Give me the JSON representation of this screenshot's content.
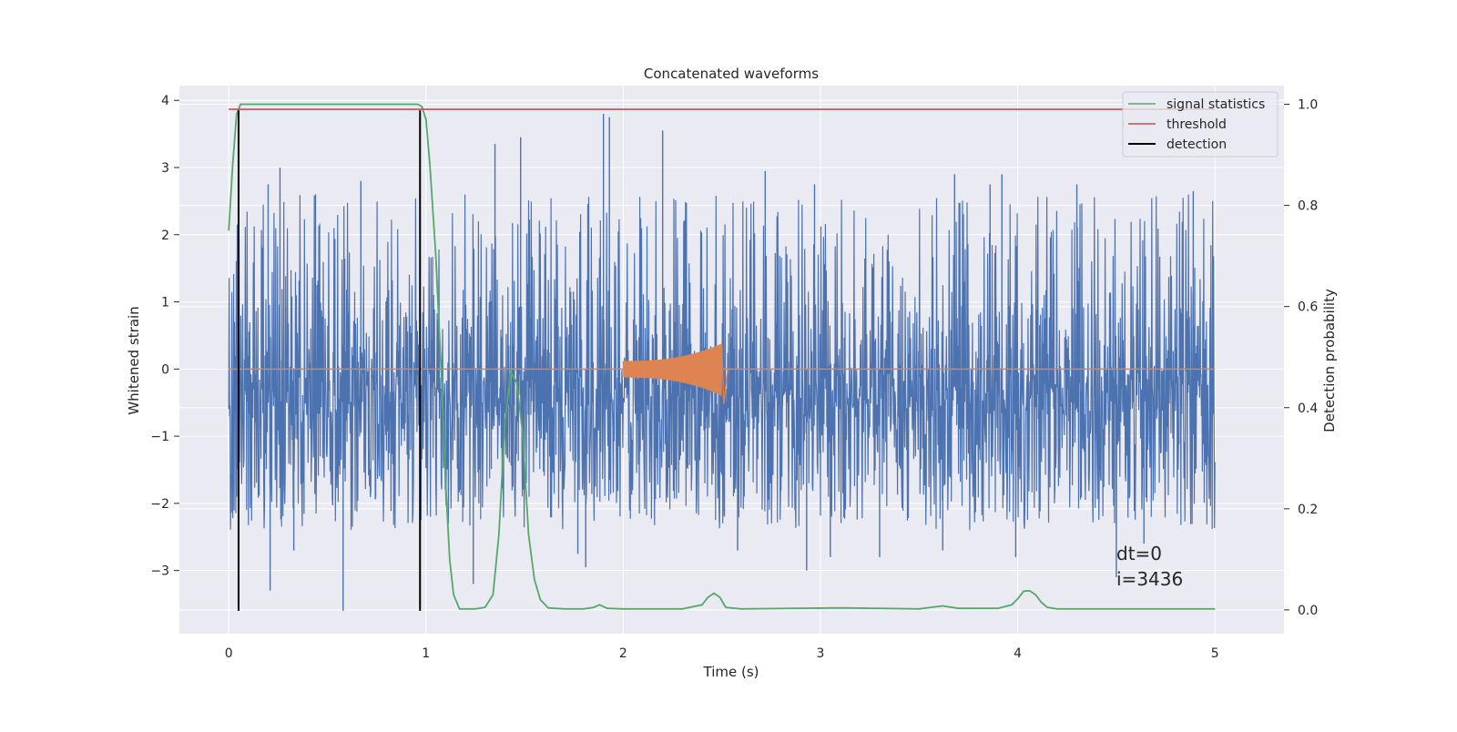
{
  "chart_data": {
    "type": "line",
    "title": "Concatenated waveforms",
    "xlabel": "Time (s)",
    "ylabel": "Whitened strain",
    "y2label": "Detection probability",
    "xlim": [
      -0.25,
      5.35
    ],
    "ylim": [
      -3.94,
      4.22
    ],
    "y2lim": [
      -0.047,
      1.037
    ],
    "xticks": [
      "0",
      "1",
      "2",
      "3",
      "4",
      "5"
    ],
    "xtick_values": [
      0,
      1,
      2,
      3,
      4,
      5
    ],
    "yticks": [
      "−3",
      "−2",
      "−1",
      "0",
      "1",
      "2",
      "3",
      "4"
    ],
    "ytick_values": [
      -3,
      -2,
      -1,
      0,
      1,
      2,
      3,
      4
    ],
    "y2ticks": [
      "0.0",
      "0.2",
      "0.4",
      "0.6",
      "0.8",
      "1.0"
    ],
    "y2tick_values": [
      0.0,
      0.2,
      0.4,
      0.6,
      0.8,
      1.0
    ],
    "grid": true,
    "legend_position": "top-right",
    "colors": {
      "strain": "#4c72b0",
      "waveform": "#dd8452",
      "signal_statistics": "#55a868",
      "threshold": "#c44e52",
      "detection": "#000000",
      "axes_bg": "#eaeaf2",
      "grid": "#ffffff"
    },
    "series": [
      {
        "name": "signal statistics",
        "axis": "right",
        "x": [
          0.0,
          0.02,
          0.04,
          0.06,
          0.08,
          0.12,
          0.2,
          0.5,
          0.9,
          0.96,
          0.98,
          1.0,
          1.02,
          1.05,
          1.08,
          1.1,
          1.12,
          1.14,
          1.17,
          1.25,
          1.3,
          1.34,
          1.37,
          1.4,
          1.43,
          1.46,
          1.49,
          1.52,
          1.55,
          1.58,
          1.62,
          1.7,
          1.8,
          1.85,
          1.88,
          1.92,
          2.0,
          2.3,
          2.4,
          2.43,
          2.46,
          2.49,
          2.52,
          2.6,
          3.1,
          3.5,
          3.62,
          3.7,
          3.9,
          3.97,
          4.0,
          4.03,
          4.06,
          4.09,
          4.12,
          4.15,
          4.2,
          4.5,
          5.0
        ],
        "values": [
          0.75,
          0.88,
          0.98,
          1.0,
          1.0,
          1.0,
          1.0,
          1.0,
          1.0,
          1.0,
          0.995,
          0.97,
          0.88,
          0.7,
          0.45,
          0.25,
          0.1,
          0.03,
          0.002,
          0.002,
          0.005,
          0.03,
          0.15,
          0.37,
          0.47,
          0.45,
          0.35,
          0.15,
          0.06,
          0.02,
          0.004,
          0.002,
          0.002,
          0.005,
          0.01,
          0.003,
          0.002,
          0.002,
          0.01,
          0.025,
          0.033,
          0.025,
          0.005,
          0.002,
          0.004,
          0.002,
          0.008,
          0.003,
          0.003,
          0.01,
          0.022,
          0.037,
          0.038,
          0.03,
          0.015,
          0.005,
          0.002,
          0.002,
          0.002
        ]
      },
      {
        "name": "threshold",
        "axis": "right",
        "x": [
          0.0,
          5.0
        ],
        "values": [
          0.99,
          0.99
        ]
      },
      {
        "name": "detection",
        "axis": "left",
        "segments": [
          {
            "x": 0.05,
            "ymin": -3.6,
            "ymax": 3.85
          },
          {
            "x": 0.97,
            "ymin": -3.6,
            "ymax": 3.85
          }
        ]
      }
    ],
    "strain": {
      "x_range": [
        0.0,
        5.0
      ],
      "core_band": [
        -0.75,
        1.0
      ],
      "typical_max": 2.6,
      "typical_min": -2.4,
      "peaks": [
        {
          "x": 0.2,
          "y": 2.75
        },
        {
          "x": 0.26,
          "y": 3.0
        },
        {
          "x": 0.44,
          "y": 2.6
        },
        {
          "x": 0.67,
          "y": 2.8
        },
        {
          "x": 1.35,
          "y": 3.35
        },
        {
          "x": 1.48,
          "y": 3.45
        },
        {
          "x": 1.9,
          "y": 3.8
        },
        {
          "x": 1.93,
          "y": 3.75
        },
        {
          "x": 2.2,
          "y": 3.55
        },
        {
          "x": 2.72,
          "y": 2.95
        },
        {
          "x": 2.97,
          "y": 2.75
        },
        {
          "x": 3.68,
          "y": 2.9
        },
        {
          "x": 3.86,
          "y": 2.75
        },
        {
          "x": 3.92,
          "y": 2.9
        },
        {
          "x": 4.3,
          "y": 2.75
        },
        {
          "x": 4.89,
          "y": 2.65
        }
      ],
      "troughs": [
        {
          "x": 0.05,
          "y": -2.2
        },
        {
          "x": 0.21,
          "y": -3.3
        },
        {
          "x": 0.33,
          "y": -2.7
        },
        {
          "x": 0.58,
          "y": -3.6
        },
        {
          "x": 1.24,
          "y": -3.2
        },
        {
          "x": 1.77,
          "y": -2.75
        },
        {
          "x": 1.81,
          "y": -2.95
        },
        {
          "x": 2.58,
          "y": -2.7
        },
        {
          "x": 2.93,
          "y": -3.0
        },
        {
          "x": 3.05,
          "y": -2.8
        },
        {
          "x": 3.3,
          "y": -2.8
        },
        {
          "x": 3.62,
          "y": -2.7
        },
        {
          "x": 3.99,
          "y": -2.8
        },
        {
          "x": 4.5,
          "y": -3.1
        },
        {
          "x": 4.64,
          "y": -2.6
        }
      ]
    },
    "waveform": {
      "x_range": [
        2.0,
        2.53
      ],
      "amplitude_start": 0.12,
      "amplitude_peak": 0.38,
      "peak_x": 2.5,
      "negative_peak": -0.52
    },
    "annotations": [
      "dt=0",
      "i=3436"
    ]
  }
}
